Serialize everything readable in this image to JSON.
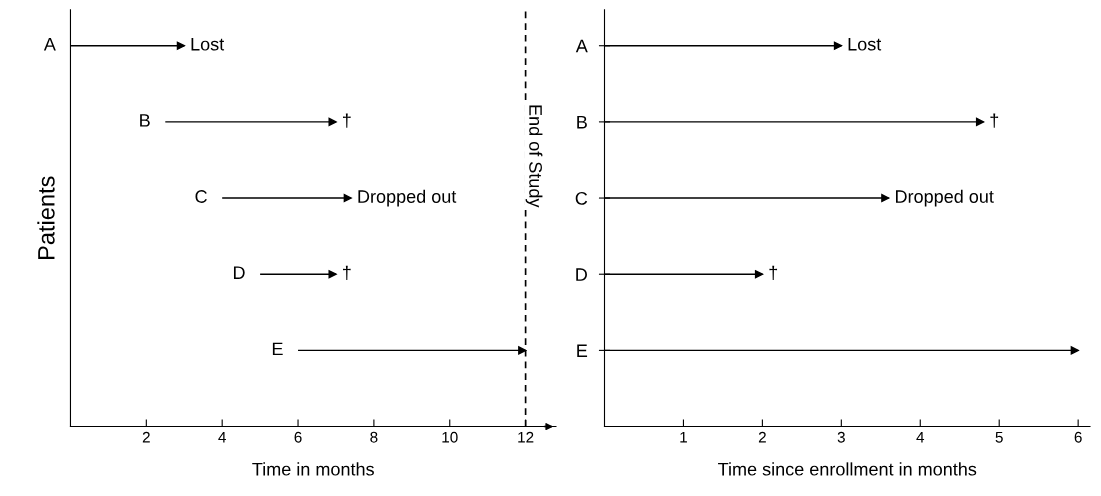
{
  "chart_data": [
    {
      "type": "bar",
      "orientation": "horizontal",
      "xlabel": "Time in months",
      "ylabel": "Patients",
      "categories": [
        "A",
        "B",
        "C",
        "D",
        "E"
      ],
      "base": [
        0,
        2.5,
        4,
        5,
        6
      ],
      "values": [
        3,
        4.5,
        3.4,
        2,
        6
      ],
      "color": "#000000",
      "xlim": [
        0,
        12.8
      ],
      "xticks": [
        2,
        4,
        6,
        8,
        10,
        12
      ],
      "tick_labels": "x",
      "ref_lines": [
        {
          "axis": "x",
          "value": 12,
          "label": "End of Study",
          "line_style": "dashed",
          "color": "#000000"
        }
      ],
      "annotations": [
        {
          "text": "Lost",
          "x": 3,
          "y": "A"
        },
        {
          "text": "†",
          "x": 7,
          "y": "B"
        },
        {
          "text": "Dropped out",
          "x": 7.4,
          "y": "C"
        },
        {
          "text": "†",
          "x": 7,
          "y": "D"
        }
      ]
    },
    {
      "type": "bar",
      "orientation": "horizontal",
      "xlabel": "Time since enrollment in months",
      "categories": [
        "A",
        "B",
        "C",
        "D",
        "E"
      ],
      "values": [
        3,
        4.8,
        3.6,
        2,
        6
      ],
      "color": "#000000",
      "xlim": [
        0,
        6.15
      ],
      "xticks": [
        1,
        2,
        3,
        4,
        5,
        6
      ],
      "annotations": [
        {
          "text": "Lost",
          "x": 3,
          "y": "A"
        },
        {
          "text": "†",
          "x": 4.8,
          "y": "B"
        },
        {
          "text": "Dropped out",
          "x": 3.6,
          "y": "C"
        },
        {
          "text": "†",
          "x": 2,
          "y": "D"
        }
      ]
    }
  ]
}
